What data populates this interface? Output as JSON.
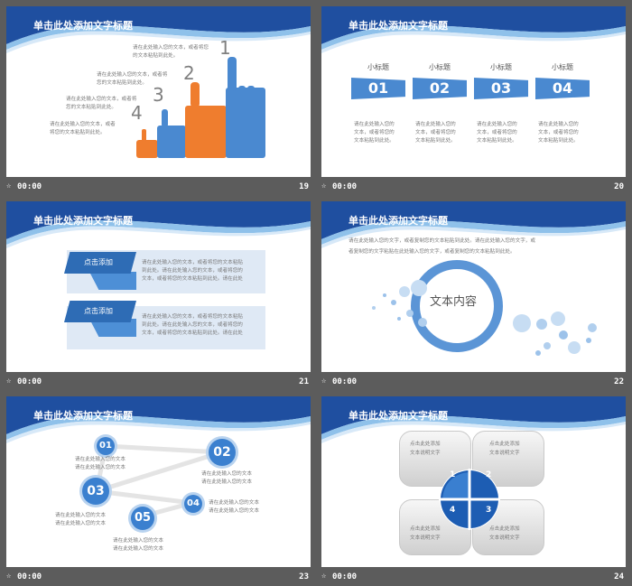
{
  "slides": [
    {
      "title": "单击此处添加文字标题",
      "time": "00:00",
      "number": "19",
      "steps": [
        {
          "num": "1",
          "text": [
            "请在此处输入您的文本，或者将您",
            "的文本粘贴到此处。"
          ]
        },
        {
          "num": "2",
          "text": [
            "请在此处输入您的文本，或者将",
            "您的文本粘贴到此处。"
          ]
        },
        {
          "num": "3",
          "text": [
            "请在此处输入您的文本，或者将",
            "您的文本粘贴到此处。"
          ]
        },
        {
          "num": "4",
          "text": [
            "请在此处输入您的文本，或者",
            "将您的文本粘贴到此处。"
          ]
        }
      ]
    },
    {
      "title": "单击此处添加文字标题",
      "time": "00:00",
      "number": "20",
      "columns": [
        {
          "subtitle": "小标题",
          "num": "01",
          "text": [
            "请在此处输入您的",
            "文本，或者将您的",
            "文本粘贴到此处。"
          ]
        },
        {
          "subtitle": "小标题",
          "num": "02",
          "text": [
            "请在此处输入您的",
            "文本，或者将您的",
            "文本粘贴到此处。"
          ]
        },
        {
          "subtitle": "小标题",
          "num": "03",
          "text": [
            "请在此处输入您的",
            "文本，或者将您的",
            "文本粘贴到此处。"
          ]
        },
        {
          "subtitle": "小标题",
          "num": "04",
          "text": [
            "请在此处输入您的",
            "文本，或者将您的",
            "文本粘贴到此处。"
          ]
        }
      ]
    },
    {
      "title": "单击此处添加文字标题",
      "time": "00:00",
      "number": "21",
      "blocks": [
        {
          "tag": "点击添加",
          "text": [
            "请在此处输入您的文本，或者将您的文本粘贴",
            "到此处。请在此处输入您的文本，或者将您的",
            "文本，或者将您的文本粘贴到此处。请在此处"
          ]
        },
        {
          "tag": "点击添加",
          "text": [
            "请在此处输入您的文本，或者将您的文本粘贴",
            "到此处。请在此处输入您的文本，或者将您的",
            "文本，或者将您的文本粘贴到此处。请在此处"
          ]
        }
      ]
    },
    {
      "title": "单击此处添加文字标题",
      "time": "00:00",
      "number": "22",
      "paragraph": [
        "请在此处输入您的文字，或者复制您的文本粘贴到此处。请在此处输入您的文字，或",
        "者复制您的文字粘贴在此处输入您的文字，或者复制您的文本粘贴到此处。"
      ],
      "center_text": "文本内容"
    },
    {
      "title": "单击此处添加文字标题",
      "time": "00:00",
      "number": "23",
      "nodes": [
        {
          "num": "01",
          "text": [
            "请在此处输入您的文本",
            "请在此处输入您的文本"
          ]
        },
        {
          "num": "02",
          "text": [
            "请在此处输入您的文本",
            "请在此处输入您的文本"
          ]
        },
        {
          "num": "03",
          "text": [
            "请在此处输入您的文本",
            "请在此处输入您的文本"
          ]
        },
        {
          "num": "04",
          "text": [
            "请在此处输入您的文本",
            "请在此处输入您的文本"
          ]
        },
        {
          "num": "05",
          "text": [
            "请在此处输入您的文本",
            "请在此处输入您的文本"
          ]
        }
      ]
    },
    {
      "title": "单击此处添加文字标题",
      "time": "00:00",
      "number": "24",
      "quads": [
        {
          "num": "1",
          "text": [
            "点击此处添加",
            "文本说明文字"
          ]
        },
        {
          "num": "2",
          "text": [
            "点击此处添加",
            "文本说明文字"
          ]
        },
        {
          "num": "3",
          "text": [
            "点击此处添加",
            "文本说明文字"
          ]
        },
        {
          "num": "4",
          "text": [
            "点击此处添加",
            "文本说明文字"
          ]
        }
      ]
    }
  ],
  "colors": {
    "background": "#5c5c5c",
    "band_dark": "#1f4fa0",
    "band_light": "#8fc1ea",
    "accent_blue": "#4a89d0",
    "accent_orange": "#ef7d2e"
  },
  "icons": {
    "footer": "star-icon"
  }
}
